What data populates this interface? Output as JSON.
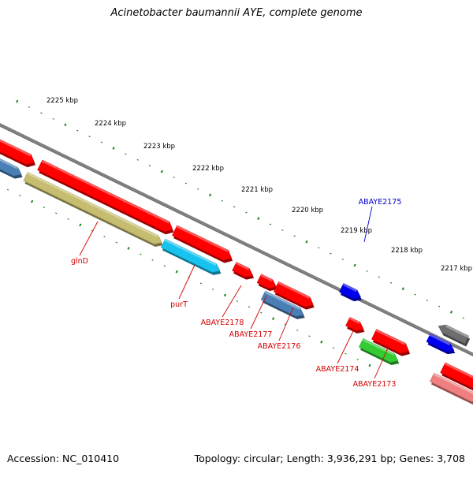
{
  "title": "Acinetobacter baumannii AYE, complete genome",
  "footer": {
    "accession": "Accession: NC_010410",
    "summary": "Topology: circular; Length: 3,936,291 bp; Genes: 3,708"
  },
  "colors": {
    "tick": "#1f7f1f",
    "backbone": "#808080",
    "red": "#ff0000",
    "blue": "#0000ee",
    "steelblue": "#4a7fb5",
    "olive": "#c6bd70",
    "cyan": "#19c3f0",
    "gray": "#6e6e6e",
    "green": "#33cc33",
    "pink": "#f08080",
    "label_red": "#d40000",
    "label_blue": "#0000cc"
  },
  "kbp_labels": [
    "2225 kbp",
    "2224 kbp",
    "2223 kbp",
    "2222 kbp",
    "2221 kbp",
    "2220 kbp",
    "2219 kbp",
    "2218 kbp",
    "2217 kbp"
  ],
  "genes": [
    {
      "id": "glnD",
      "label": "glnD",
      "color": "red",
      "labeled": true
    },
    {
      "id": "purT",
      "label": "purT",
      "color": "red",
      "labeled": true
    },
    {
      "id": "ABAYE2178",
      "label": "ABAYE2178",
      "color": "red",
      "labeled": true
    },
    {
      "id": "ABAYE2177",
      "label": "ABAYE2177",
      "color": "red",
      "labeled": true
    },
    {
      "id": "ABAYE2176",
      "label": "ABAYE2176",
      "color": "red",
      "labeled": true
    },
    {
      "id": "ABAYE2175",
      "label": "ABAYE2175",
      "color": "blue",
      "labeled": true
    },
    {
      "id": "ABAYE2174",
      "label": "ABAYE2174",
      "color": "red",
      "labeled": true
    },
    {
      "id": "ABAYE2173",
      "label": "ABAYE2173",
      "color": "red",
      "labeled": true
    }
  ]
}
